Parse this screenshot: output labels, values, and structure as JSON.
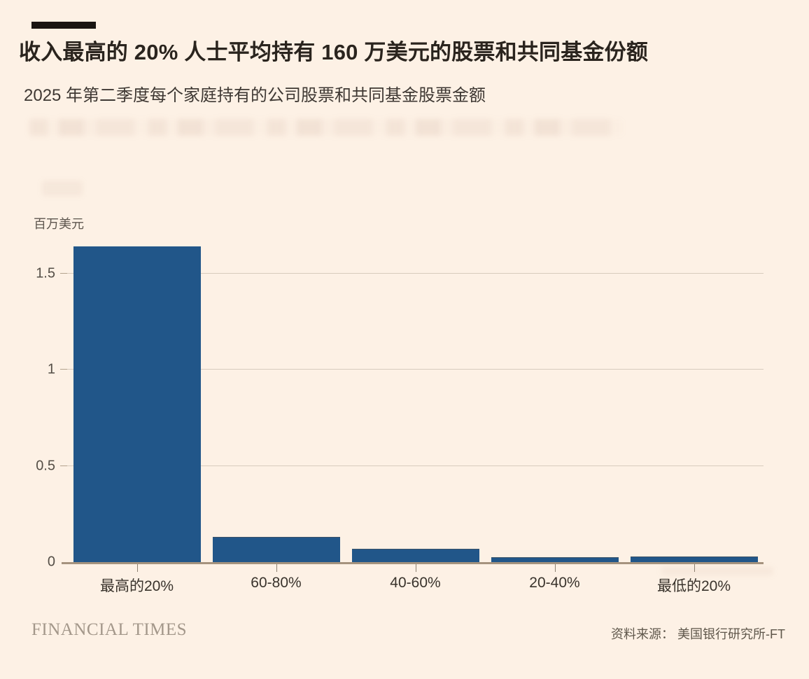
{
  "header": {
    "title": "收入最高的 20% 人士平均持有 160 万美元的股票和共同基金份额",
    "subtitle": "2025 年第二季度每个家庭持有的公司股票和共同基金股票金额"
  },
  "chart_data": {
    "type": "bar",
    "title": "收入最高的 20% 人士平均持有 160 万美元的股票和共同基金份额",
    "subtitle": "2025 年第二季度每个家庭持有的公司股票和共同基金股票金额",
    "ylabel": "百万美元",
    "xlabel": "",
    "categories": [
      "最高的20%",
      "60-80%",
      "40-60%",
      "20-40%",
      "最低的20%"
    ],
    "values": [
      1.64,
      0.13,
      0.07,
      0.025,
      0.03
    ],
    "yticks": [
      0,
      0.5,
      1,
      1.5
    ],
    "ytick_labels": [
      "0",
      "0.5",
      "1",
      "1.5"
    ],
    "ylim": [
      0,
      1.7
    ],
    "grid": true,
    "legend_position": "none",
    "bar_color": "#215689"
  },
  "footer": {
    "brand": "FINANCIAL TIMES",
    "source": "资料来源： 美国银行研究所-FT"
  },
  "colors": {
    "background": "#fdf1e5",
    "accent_bar": "#181512",
    "bar": "#215689",
    "gridline": "#d7cbbd",
    "axis_line": "#a5937e",
    "title_text": "#2a241e",
    "brand_text": "#a3978a"
  }
}
